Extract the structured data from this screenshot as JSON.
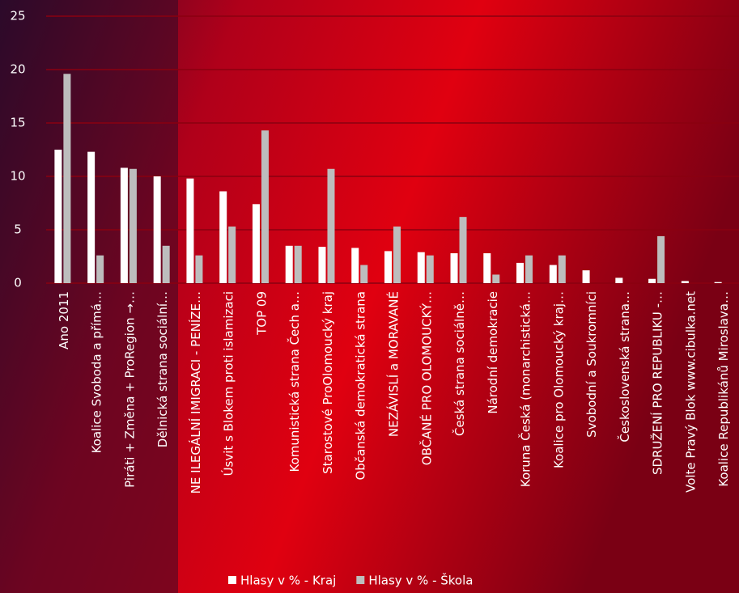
{
  "chart_data": {
    "type": "bar",
    "categories": [
      "Ano 2011",
      "Koalice Svoboda a přímá…",
      "Piráti + Změna + ProRegion →…",
      "Dělnická strana sociální…",
      "NE ILEGÁLNÍ IMIGRACI - PENÍZE…",
      "Úsvit s Blokem proti islamizaci",
      "TOP 09",
      "Komunistická strana Čech a…",
      "Starostové ProOlomoucký kraj",
      "Občanská demokratická strana",
      "NEZÁVISLÍ a MORAVANÉ",
      "OBČANÉ PRO OLOMOUCKÝ…",
      "Česká strana sociálně…",
      "Národní demokracie",
      "Koruna Česká (monarchistická…",
      "Koalice pro Olomoucký kraj…",
      "Svobodní a Soukromníci",
      "Československá strana…",
      "SDRUŽENÍ PRO REPUBLIKU -…",
      "Volte Pravý Blok www.cibulka.net",
      "Koalice Republikánů Miroslava…"
    ],
    "series": [
      {
        "name": "Hlasy v % - Kraj",
        "color": "#ffffff",
        "values": [
          12.5,
          12.3,
          10.8,
          10.0,
          9.8,
          8.6,
          7.4,
          3.5,
          3.4,
          3.3,
          3.0,
          2.9,
          2.8,
          2.8,
          1.9,
          1.7,
          1.2,
          0.5,
          0.4,
          0.2,
          0.1
        ]
      },
      {
        "name": "Hlasy v % - Škola",
        "color": "#bdbdbd",
        "values": [
          19.6,
          2.6,
          10.7,
          3.5,
          2.6,
          5.3,
          14.3,
          3.5,
          10.7,
          1.7,
          5.3,
          2.6,
          6.2,
          0.8,
          2.6,
          2.6,
          0,
          0,
          4.4,
          0,
          0
        ]
      }
    ],
    "ylim": [
      0,
      25
    ],
    "yticks": [
      0,
      5,
      10,
      15,
      20,
      25
    ],
    "grid": true,
    "legend": "bottom"
  }
}
